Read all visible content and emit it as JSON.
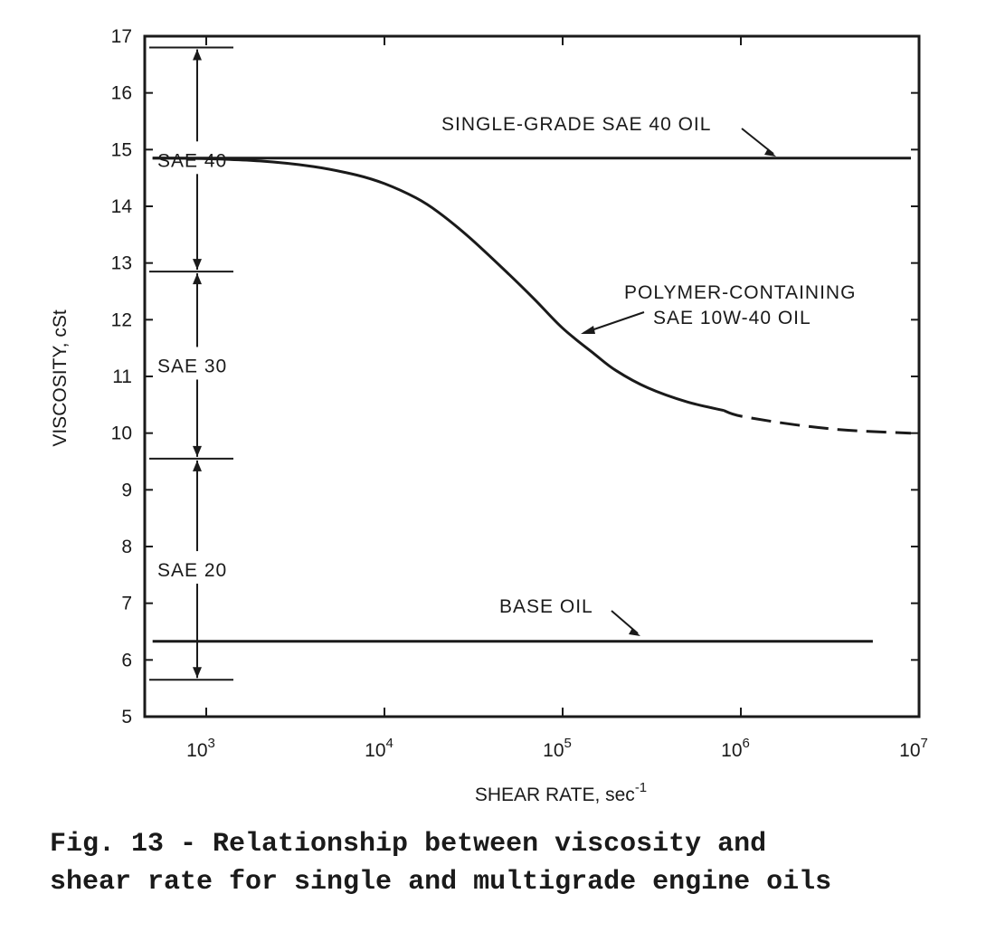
{
  "chart_data": {
    "type": "line",
    "xlabel": "SHEAR RATE, sec",
    "xlabel_superscript": "-1",
    "ylabel": "VISCOSITY, cSt",
    "x_scale": "log",
    "xlim": [
      500,
      10000000
    ],
    "ylim": [
      5,
      17
    ],
    "x_ticks": [
      {
        "value": 1000,
        "base": "10",
        "exp": "3"
      },
      {
        "value": 10000,
        "base": "10",
        "exp": "4"
      },
      {
        "value": 100000,
        "base": "10",
        "exp": "5"
      },
      {
        "value": 1000000,
        "base": "10",
        "exp": "6"
      },
      {
        "value": 10000000,
        "base": "10",
        "exp": "7"
      }
    ],
    "y_ticks": [
      5,
      6,
      7,
      8,
      9,
      10,
      11,
      12,
      13,
      14,
      15,
      16,
      17
    ],
    "grid": false,
    "series": [
      {
        "name": "SINGLE-GRADE SAE 40 OIL",
        "style": "solid",
        "x": [
          500,
          9000000
        ],
        "y": [
          14.85,
          14.85
        ]
      },
      {
        "name": "POLYMER-CONTAINING SAE 10W-40 OIL",
        "style": "solid",
        "x": [
          500,
          1000,
          2000,
          4000,
          7000,
          10000,
          15000,
          20000,
          30000,
          50000,
          70000,
          100000,
          150000,
          200000,
          300000,
          500000,
          800000
        ],
        "y": [
          14.85,
          14.84,
          14.8,
          14.7,
          14.55,
          14.4,
          14.15,
          13.9,
          13.45,
          12.8,
          12.35,
          11.85,
          11.4,
          11.1,
          10.8,
          10.55,
          10.4
        ]
      },
      {
        "name": "POLYMER-CONTAINING SAE 10W-40 OIL (extrapolated)",
        "style": "dashed",
        "x": [
          800000,
          1000000,
          2000000,
          4000000,
          9000000
        ],
        "y": [
          10.4,
          10.3,
          10.15,
          10.05,
          10.0
        ]
      },
      {
        "name": "BASE OIL",
        "style": "solid",
        "x": [
          500,
          5500000
        ],
        "y": [
          6.33,
          6.33
        ]
      }
    ],
    "sae_ranges": [
      {
        "label": "SAE 40",
        "from": 12.85,
        "to": 16.8
      },
      {
        "label": "SAE 30",
        "from": 9.55,
        "to": 12.85
      },
      {
        "label": "SAE 20",
        "from": 5.65,
        "to": 9.55
      }
    ],
    "annotations": {
      "single_grade": "SINGLE-GRADE SAE 40 OIL",
      "polymer_line1": "POLYMER-CONTAINING",
      "polymer_line2": "SAE 10W-40 OIL",
      "base_oil": "BASE OIL"
    }
  },
  "caption": {
    "line1": "Fig. 13 - Relationship between viscosity and",
    "line2": "shear rate for single and multigrade engine oils"
  }
}
